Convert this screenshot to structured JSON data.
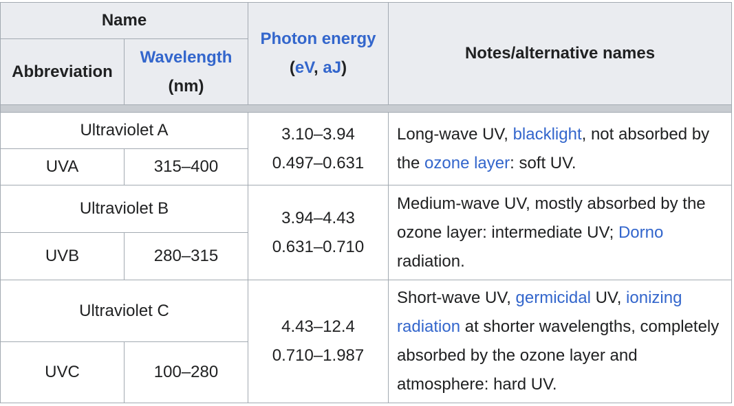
{
  "header": {
    "name": "Name",
    "abbreviation": "Abbreviation",
    "wavelength_link": "Wavelength",
    "wavelength_unit": "(nm)",
    "photon_energy_link": "Photon energy",
    "energy_open": "(",
    "energy_ev": "eV",
    "energy_sep": ", ",
    "energy_aj": "aJ",
    "energy_close": ")",
    "notes": "Notes/alternative names"
  },
  "rows": [
    {
      "name": "Ultraviolet A",
      "abbreviation": "UVA",
      "wavelength": "315–400",
      "energy_ev": "3.10–3.94",
      "energy_aj": "0.497–0.631",
      "notes": {
        "t1": "Long-wave UV, ",
        "l1": "blacklight",
        "t2": ", not absorbed by the ",
        "l2": "ozone layer",
        "t3": ": soft UV."
      }
    },
    {
      "name": "Ultraviolet B",
      "abbreviation": "UVB",
      "wavelength": "280–315",
      "energy_ev": "3.94–4.43",
      "energy_aj": "0.631–0.710",
      "notes": {
        "t1": "Medium-wave UV, mostly absorbed by the ozone layer: intermediate UV; ",
        "l1": "Dorno",
        "t2": " radiation."
      }
    },
    {
      "name": "Ultraviolet C",
      "abbreviation": "UVC",
      "wavelength": "100–280",
      "energy_ev": "4.43–12.4",
      "energy_aj": "0.710–1.987",
      "notes": {
        "t1": "Short-wave UV, ",
        "l1": "germicidal",
        "t2": " UV, ",
        "l2": "ionizing radiation",
        "t3": " at shorter wavelengths, completely absorbed by the ozone layer and atmosphere: hard UV."
      }
    }
  ],
  "colors": {
    "header_bg": "#eaecf0",
    "border": "#a2a9b1",
    "link": "#3366cc",
    "text": "#202122"
  }
}
